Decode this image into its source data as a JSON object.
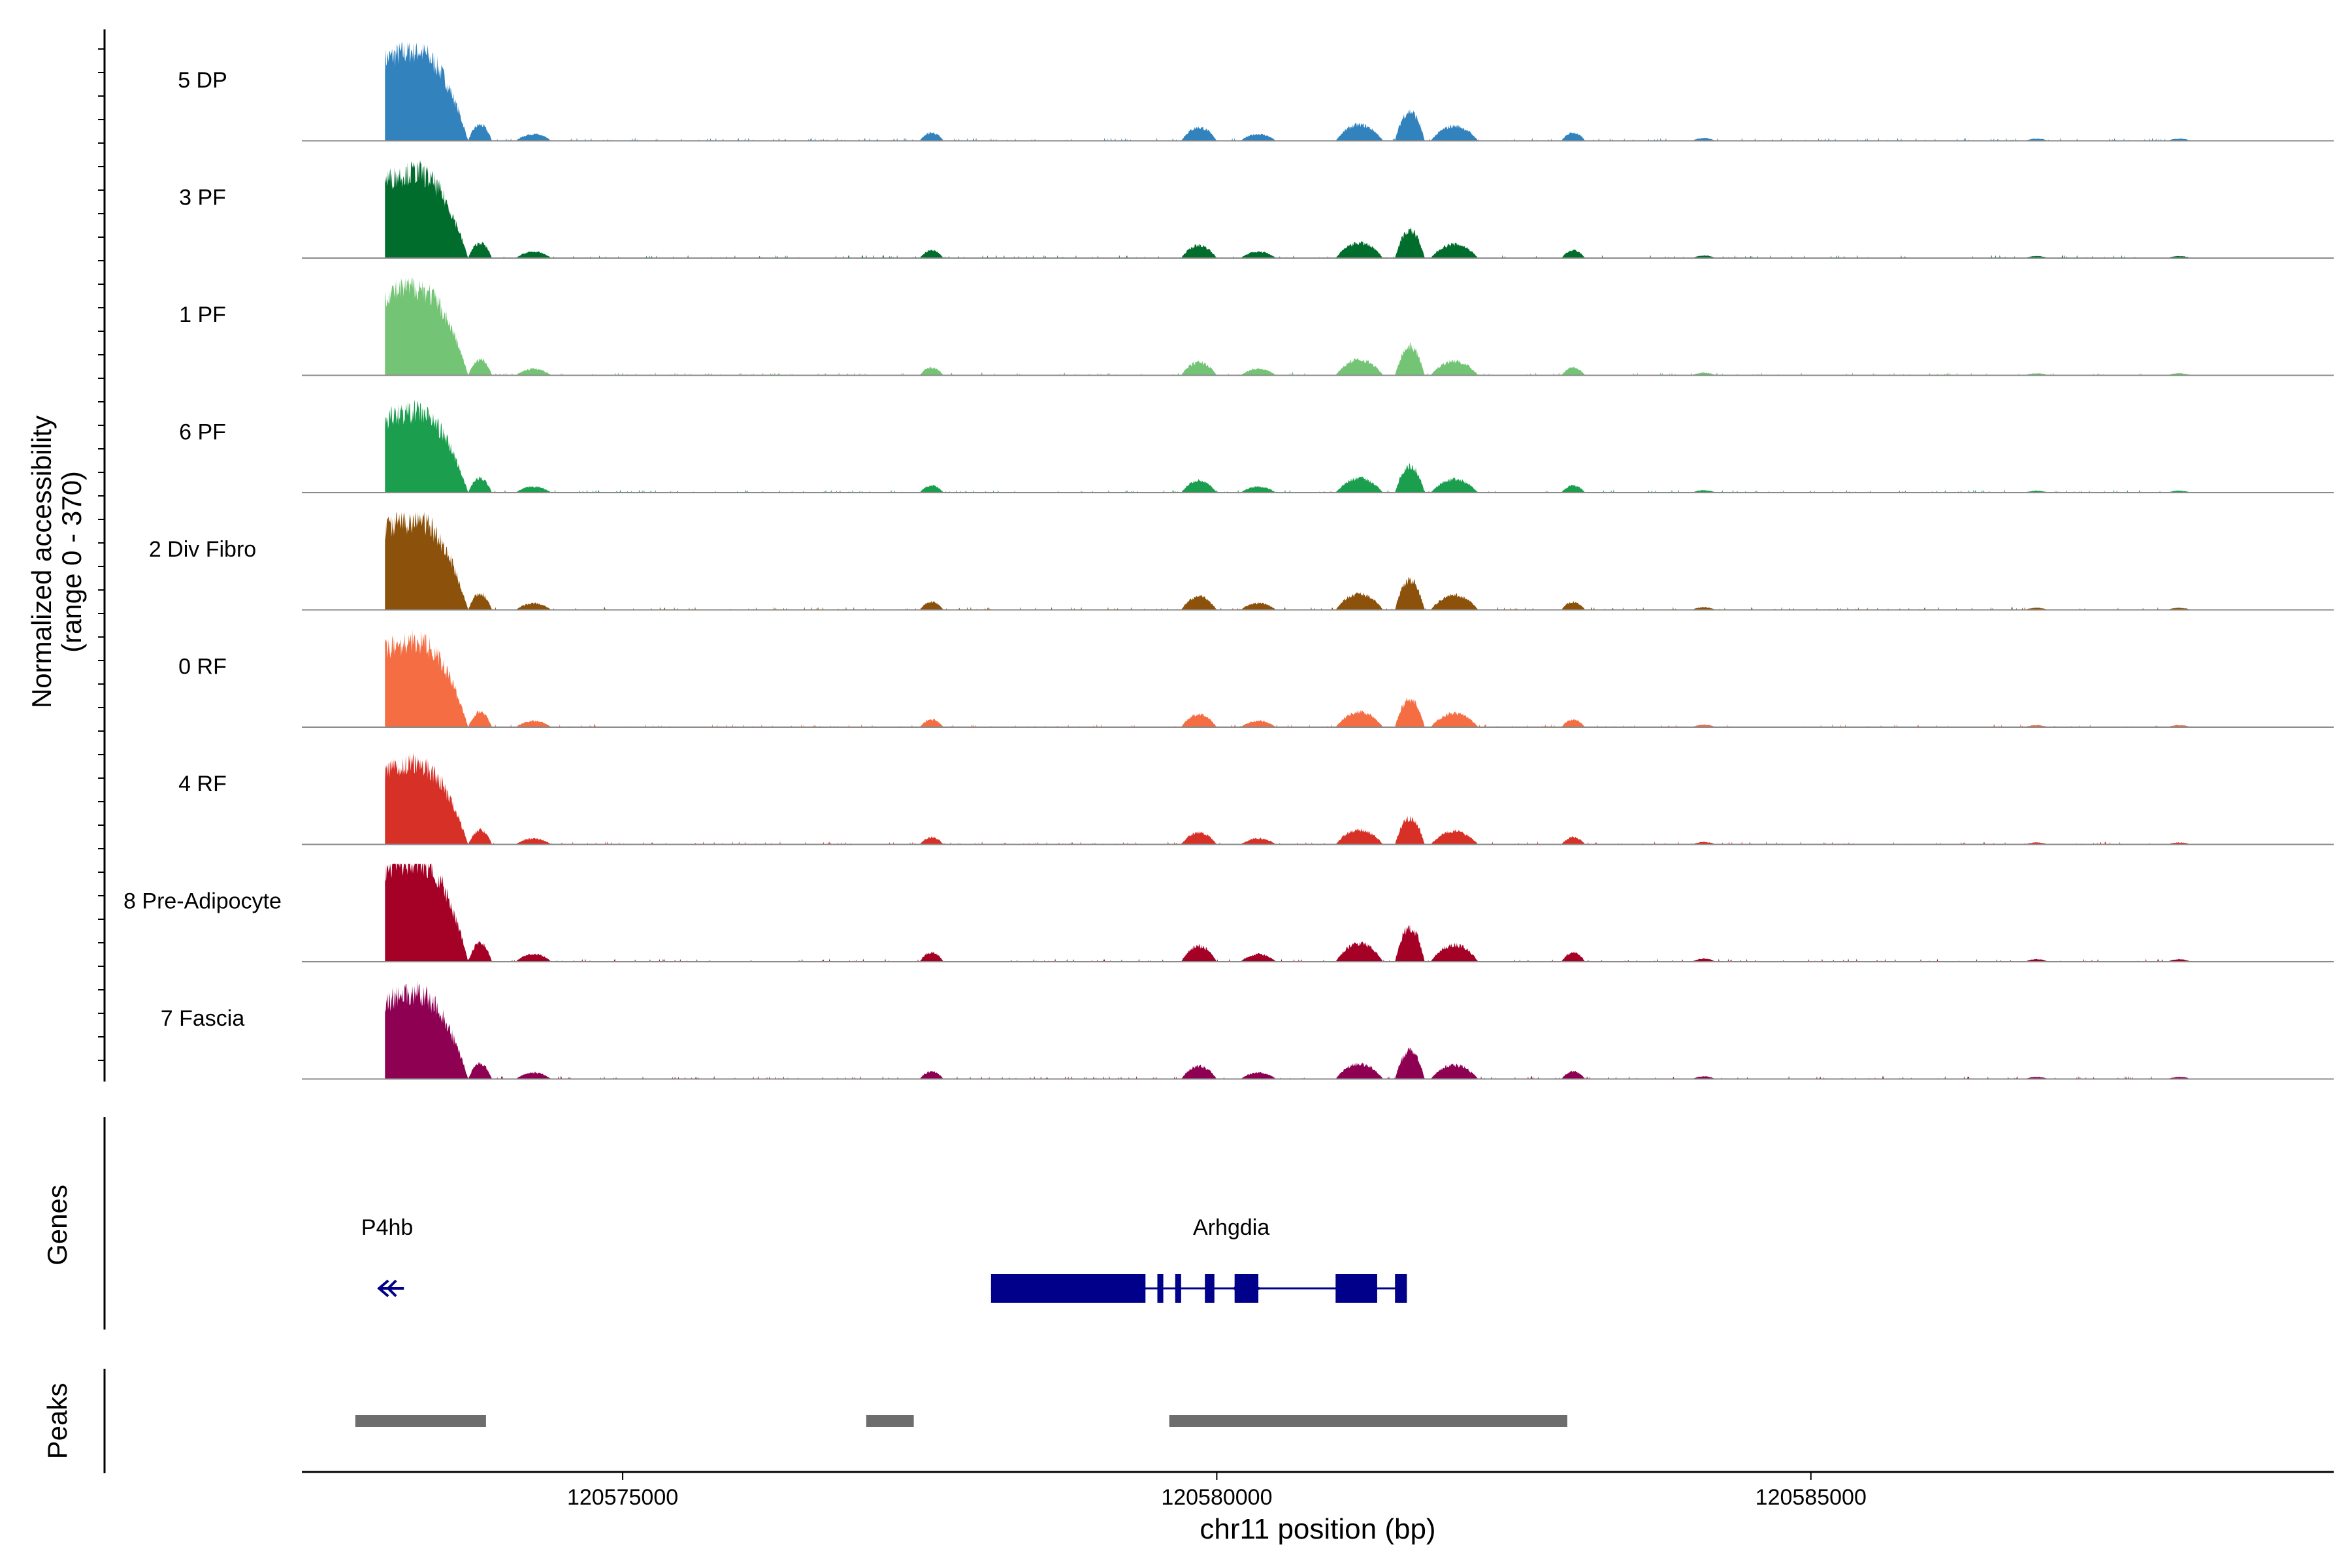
{
  "chart_data": {
    "type": "area",
    "x_axis": {
      "label": "chr11 position (bp)",
      "range": [
        120572300,
        120589400
      ],
      "ticks": [
        120575000,
        120580000,
        120585000
      ],
      "tick_labels": [
        "120575000",
        "120580000",
        "120585000"
      ]
    },
    "y_axis": {
      "label_line1": "Normalized accessibility",
      "label_line2": "(range 0 - 370)",
      "range": [
        0,
        370
      ]
    },
    "peak_regions": [
      [
        120572800,
        120573700,
        340
      ],
      [
        120573700,
        120573900,
        60
      ],
      [
        120574100,
        120574400,
        25
      ],
      [
        120577500,
        120577700,
        30
      ],
      [
        120579700,
        120580000,
        50
      ],
      [
        120580200,
        120580500,
        25
      ],
      [
        120581000,
        120581400,
        60
      ],
      [
        120581500,
        120581750,
        110
      ],
      [
        120581800,
        120582200,
        55
      ],
      [
        120582900,
        120583100,
        30
      ],
      [
        120584000,
        120584200,
        10
      ],
      [
        120586800,
        120587000,
        8
      ],
      [
        120588000,
        120588200,
        8
      ]
    ],
    "series": [
      {
        "name": "5 DP",
        "color": "#3182bd",
        "scale": 1.0
      },
      {
        "name": "3 PF",
        "color": "#006d2c",
        "scale": 0.95
      },
      {
        "name": "1 PF",
        "color": "#74c476",
        "scale": 0.98
      },
      {
        "name": "6 PF",
        "color": "#1b9e4e",
        "scale": 0.9
      },
      {
        "name": "2 Div Fibro",
        "color": "#8c510a",
        "scale": 1.0
      },
      {
        "name": "0 RF",
        "color": "#f46d43",
        "scale": 0.95
      },
      {
        "name": "4 RF",
        "color": "#d73027",
        "scale": 0.9
      },
      {
        "name": "8 Pre-Adipocyte",
        "color": "#a50026",
        "scale": 1.15
      },
      {
        "name": "7 Fascia",
        "color": "#8e0152",
        "scale": 0.95
      }
    ],
    "genes": {
      "title": "Genes",
      "items": [
        {
          "name": "P4hb",
          "strand": "-",
          "label_pos": 120572800,
          "arrow_pos": 120572950,
          "exons": [],
          "line": null
        },
        {
          "name": "Arhgdia",
          "strand": "-",
          "label_pos": 120579800,
          "arrow_pos": 120580150,
          "line": [
            120578100,
            120581600
          ],
          "exons": [
            [
              120578100,
              120579400
            ],
            [
              120579500,
              120579550
            ],
            [
              120579650,
              120579700
            ],
            [
              120579900,
              120579980
            ],
            [
              120580150,
              120580350
            ],
            [
              120581000,
              120581350
            ],
            [
              120581500,
              120581600
            ]
          ],
          "color": "#00008b"
        }
      ]
    },
    "peaks": {
      "title": "Peaks",
      "color": "#6d6d6d",
      "regions": [
        [
          120572750,
          120573850
        ],
        [
          120577050,
          120577450
        ],
        [
          120579600,
          120582950
        ]
      ]
    }
  }
}
